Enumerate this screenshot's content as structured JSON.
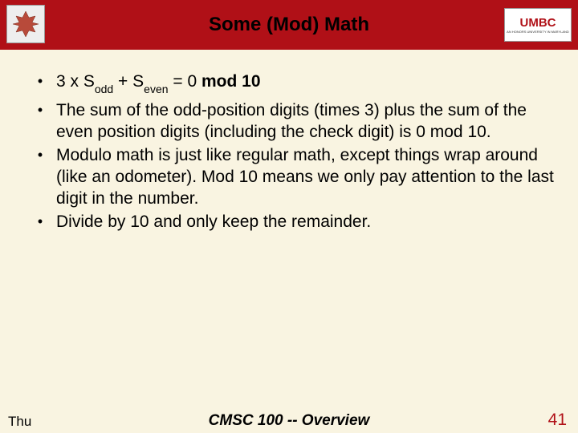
{
  "header": {
    "title": "Some (Mod) Math",
    "logo_left_alt": "leaf",
    "logo_right_text": "UMBC",
    "logo_right_sub": "AN HONORS UNIVERSITY IN MARYLAND"
  },
  "bullets": [
    {
      "html": "3 x S<span class=\"sub-small\">odd</span> + S<span class=\"sub-small\">even</span> = 0 <b>mod 10</b>"
    },
    {
      "text": "The sum of the odd-position digits (times 3) plus the sum of the even position digits (including the check digit) is 0 mod 10."
    },
    {
      "text": "Modulo math is just like regular math, except things wrap around (like an odometer).  Mod 10 means we only pay attention to the last digit in the number."
    },
    {
      "text": "Divide by 10 and only keep the remainder."
    }
  ],
  "footer": {
    "date": "Thu",
    "center": "CMSC 100 -- Overview",
    "page": "41"
  },
  "colors": {
    "header_bg": "#b01017",
    "body_bg": "#f9f4e1",
    "page_color": "#b01017"
  }
}
